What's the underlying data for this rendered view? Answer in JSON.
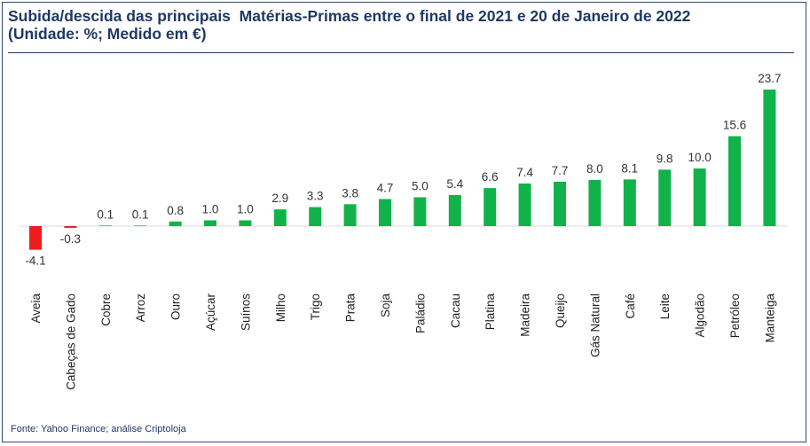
{
  "title_line1": "Subida/descida das principais  Matérias-Primas entre o final de 2021 e 20 de Janeiro de 2022",
  "title_line2": "(Unidade: %; Medido em €)",
  "source": "Fonte: Yahoo Finance; análise Criptoloja",
  "colors": {
    "positive": "#12b24a",
    "negative": "#ee1c1c",
    "title": "#1f3864"
  },
  "chart_data": {
    "type": "bar",
    "title": "Subida/descida das principais  Matérias-Primas entre o final de 2021 e 20 de Janeiro de 2022 (Unidade: %; Medido em €)",
    "categories": [
      "Aveia",
      "Cabeças de Gado",
      "Cobre",
      "Arroz",
      "Ouro",
      "Açúcar",
      "Suínos",
      "Milho",
      "Trigo",
      "Prata",
      "Soja",
      "Paládio",
      "Cacau",
      "Platina",
      "Madeira",
      "Queijo",
      "Gás Natural",
      "Café",
      "Leite",
      "Algodão",
      "Petróleo",
      "Manteiga"
    ],
    "values": [
      -4.1,
      -0.3,
      0.1,
      0.1,
      0.8,
      1.0,
      1.0,
      2.9,
      3.3,
      3.8,
      4.7,
      5.0,
      5.4,
      6.6,
      7.4,
      7.7,
      8.0,
      8.1,
      9.8,
      10.0,
      15.6,
      23.7
    ],
    "labels": [
      "-4.1",
      "-0.3",
      "0.1",
      "0.1",
      "0.8",
      "1.0",
      "1.0",
      "2.9",
      "3.3",
      "3.8",
      "4.7",
      "5.0",
      "5.4",
      "6.6",
      "7.4",
      "7.7",
      "8.0",
      "8.1",
      "9.8",
      "10.0",
      "15.6",
      "23.7"
    ],
    "xlabel": "",
    "ylabel": "",
    "ylim": [
      -4.1,
      23.7
    ],
    "grid": false,
    "legend": "none"
  }
}
